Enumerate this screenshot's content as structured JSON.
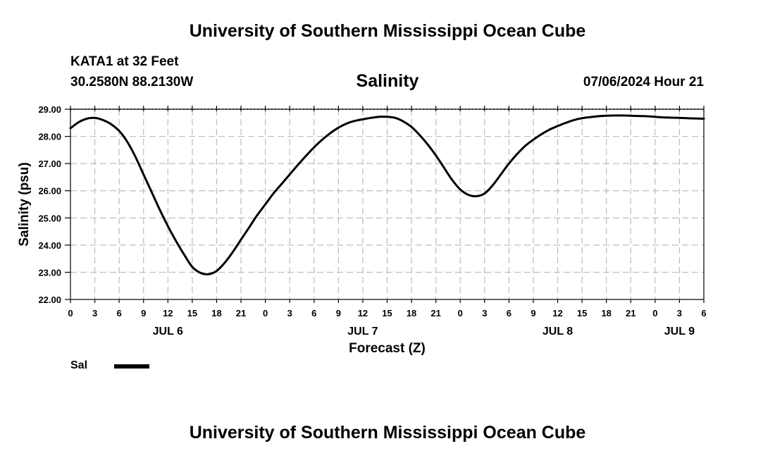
{
  "header": {
    "title": "University of Southern Mississippi Ocean Cube",
    "station": "KATA1 at 32 Feet",
    "coordinates": "30.2580N  88.2130W",
    "chart_title": "Salinity",
    "datetime": "07/06/2024 Hour 21"
  },
  "footer": {
    "title": "University of Southern Mississippi Ocean Cube"
  },
  "legend": {
    "label": "Sal",
    "color": "#000000"
  },
  "chart_data": {
    "type": "line",
    "title": "Salinity",
    "xlabel": "Forecast (Z)",
    "ylabel": "Salinity (psu)",
    "xlim": [
      0,
      78
    ],
    "ylim": [
      22.0,
      29.0
    ],
    "grid": true,
    "y_ticks": [
      "22.00",
      "23.00",
      "24.00",
      "25.00",
      "26.00",
      "27.00",
      "28.00",
      "29.00"
    ],
    "x_tick_labels": [
      "0",
      "3",
      "6",
      "9",
      "12",
      "15",
      "18",
      "21",
      "0",
      "3",
      "6",
      "9",
      "12",
      "15",
      "18",
      "21",
      "0",
      "3",
      "6",
      "9",
      "12",
      "15",
      "18",
      "21",
      "0",
      "3",
      "6"
    ],
    "date_labels": [
      {
        "label": "JUL 6",
        "hour": 12
      },
      {
        "label": "JUL 7",
        "hour": 36
      },
      {
        "label": "JUL 8",
        "hour": 60
      },
      {
        "label": "JUL 9",
        "hour": 75
      }
    ],
    "series": [
      {
        "name": "Sal",
        "x": [
          0,
          1,
          2,
          3,
          4,
          5,
          6,
          7,
          8,
          9,
          10,
          11,
          12,
          13,
          14,
          15,
          16,
          17,
          18,
          19,
          20,
          21,
          22,
          23,
          24,
          25,
          26,
          27,
          28,
          29,
          30,
          31,
          32,
          33,
          34,
          35,
          36,
          37,
          38,
          39,
          40,
          41,
          42,
          43,
          44,
          45,
          46,
          47,
          48,
          49,
          50,
          51,
          52,
          53,
          54,
          55,
          56,
          57,
          58,
          59,
          60,
          61,
          62,
          63,
          64,
          65,
          66,
          67,
          68,
          69,
          70,
          71,
          72,
          73,
          74,
          75,
          76,
          77,
          78
        ],
        "values": [
          28.3,
          28.52,
          28.65,
          28.68,
          28.6,
          28.45,
          28.2,
          27.8,
          27.25,
          26.6,
          25.95,
          25.3,
          24.7,
          24.15,
          23.65,
          23.2,
          22.98,
          22.93,
          23.05,
          23.35,
          23.75,
          24.2,
          24.65,
          25.1,
          25.5,
          25.9,
          26.25,
          26.6,
          26.95,
          27.28,
          27.6,
          27.88,
          28.12,
          28.32,
          28.47,
          28.57,
          28.63,
          28.68,
          28.72,
          28.72,
          28.68,
          28.55,
          28.35,
          28.05,
          27.7,
          27.3,
          26.85,
          26.4,
          26.05,
          25.85,
          25.8,
          25.9,
          26.2,
          26.6,
          27.0,
          27.35,
          27.65,
          27.88,
          28.08,
          28.25,
          28.38,
          28.5,
          28.6,
          28.67,
          28.71,
          28.74,
          28.76,
          28.77,
          28.77,
          28.76,
          28.75,
          28.74,
          28.72,
          28.7,
          28.69,
          28.68,
          28.67,
          28.66,
          28.65
        ]
      }
    ]
  }
}
